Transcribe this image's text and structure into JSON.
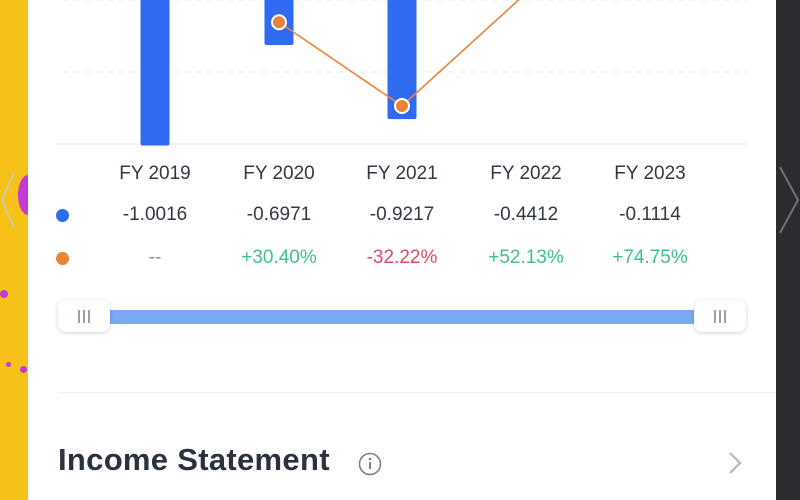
{
  "chart_data": {
    "type": "bar",
    "categories": [
      "FY 2019",
      "FY 2020",
      "FY 2021",
      "FY 2022",
      "FY 2023"
    ],
    "series": [
      {
        "values": [
          -1.0016,
          -0.6971,
          -0.9217,
          -0.4412,
          -0.1114
        ]
      },
      {
        "values": [
          null,
          30.4,
          -32.22,
          52.13,
          74.75
        ]
      }
    ]
  },
  "table": {
    "headers": [
      "FY 2019",
      "FY 2020",
      "FY 2021",
      "FY 2022",
      "FY 2023"
    ],
    "values_row": [
      "-1.0016",
      "-0.6971",
      "-0.9217",
      "-0.4412",
      "-0.1114"
    ],
    "growth_row": [
      "--",
      "+30.40%",
      "-32.22%",
      "+52.13%",
      "+74.75%"
    ]
  },
  "colors": {
    "bar": "#2e6bf0",
    "line": "#e8843a",
    "positive": "#3fbf8f",
    "negative": "#dc4c63"
  },
  "section": {
    "title": "Income Statement",
    "info_icon": "info-circle-icon",
    "chevron_icon": "chevron-right-icon"
  }
}
